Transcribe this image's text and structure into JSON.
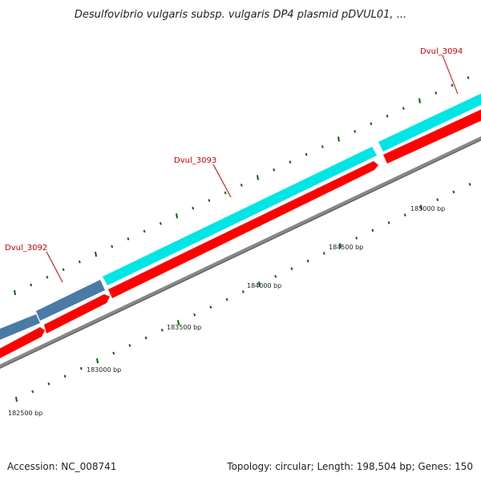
{
  "title": "Desulfovibrio vulgaris subsp. vulgaris DP4 plasmid pDVUL01, ...",
  "footer": {
    "accession": "Accession: NC_008741",
    "summary": "Topology: circular; Length: 198,504 bp; Genes: 150"
  },
  "genes": [
    {
      "name": "Dvul_3092",
      "color": "#4a7aa6"
    },
    {
      "name": "Dvul_3093",
      "color": "#00e5e5"
    },
    {
      "name": "Dvul_3094",
      "color": "#00e5e5"
    }
  ],
  "cds_color": "#ff0000",
  "backbone_color": "#888888",
  "tick_color": "#006400",
  "scale": [
    "182500 bp",
    "183000 bp",
    "183500 bp",
    "184000 bp",
    "184500 bp",
    "185000 bp"
  ]
}
